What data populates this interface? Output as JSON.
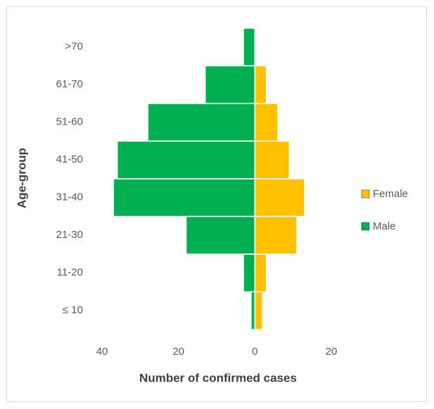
{
  "chart_data": {
    "type": "pyramid",
    "x_label": "Number of confirmed cases",
    "y_label": "Age-group",
    "categories": [
      ">70",
      "61-70",
      "51-60",
      "41-50",
      "31-40",
      "21-30",
      "11-20",
      "≤ 10"
    ],
    "series": [
      {
        "name": "Female",
        "color": "#ffc000",
        "values": [
          0,
          3,
          6,
          9,
          13,
          11,
          3,
          2
        ]
      },
      {
        "name": "Male",
        "color": "#00b050",
        "values": [
          -3,
          -13,
          -28,
          -36,
          -37,
          -18,
          -3,
          -1
        ]
      }
    ],
    "xlim": [
      -40,
      20
    ],
    "xticks": [
      {
        "value": -40,
        "label": "40"
      },
      {
        "value": -20,
        "label": "20"
      },
      0,
      20
    ],
    "legend": "right"
  }
}
